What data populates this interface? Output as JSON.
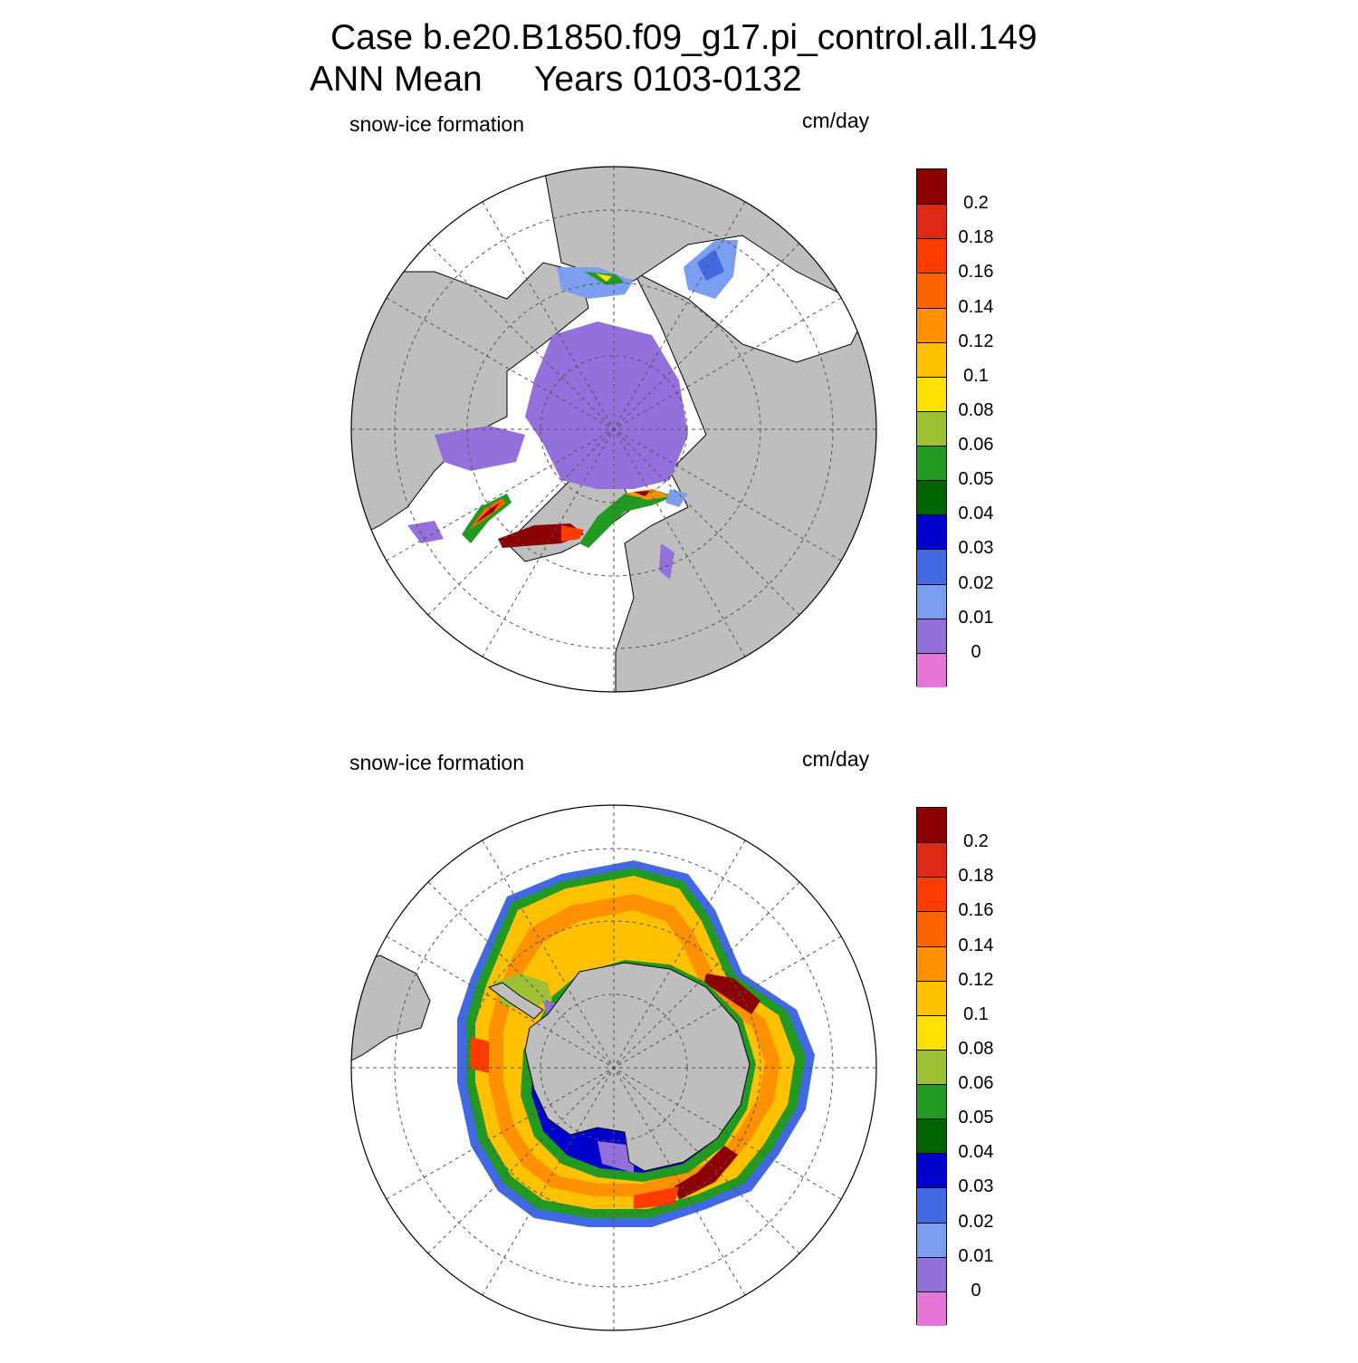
{
  "title": {
    "line1": "Case b.e20.B1850.f09_g17.pi_control.all.149",
    "line2_left": "ANN Mean",
    "line2_right": "Years 0103-0132"
  },
  "panels": [
    {
      "id": "north",
      "variable": "snow-ice formation",
      "units": "cm/day"
    },
    {
      "id": "south",
      "variable": "snow-ice formation",
      "units": "cm/day"
    }
  ],
  "colorbar": {
    "levels": [
      "0.2",
      "0.18",
      "0.16",
      "0.14",
      "0.12",
      "0.1",
      "0.08",
      "0.06",
      "0.05",
      "0.04",
      "0.03",
      "0.02",
      "0.01",
      "0"
    ],
    "colors": [
      "#8b0000",
      "#dd2a17",
      "#ff3c00",
      "#ff6400",
      "#ff9100",
      "#ffc100",
      "#ffe100",
      "#9dc132",
      "#229a22",
      "#006400",
      "#0000cd",
      "#4169e1",
      "#7b9ef0",
      "#9370db",
      "#e675d8"
    ]
  },
  "colors": {
    "land": "#bebebe",
    "ocean": "#ffffff",
    "grid": "#555555"
  }
}
